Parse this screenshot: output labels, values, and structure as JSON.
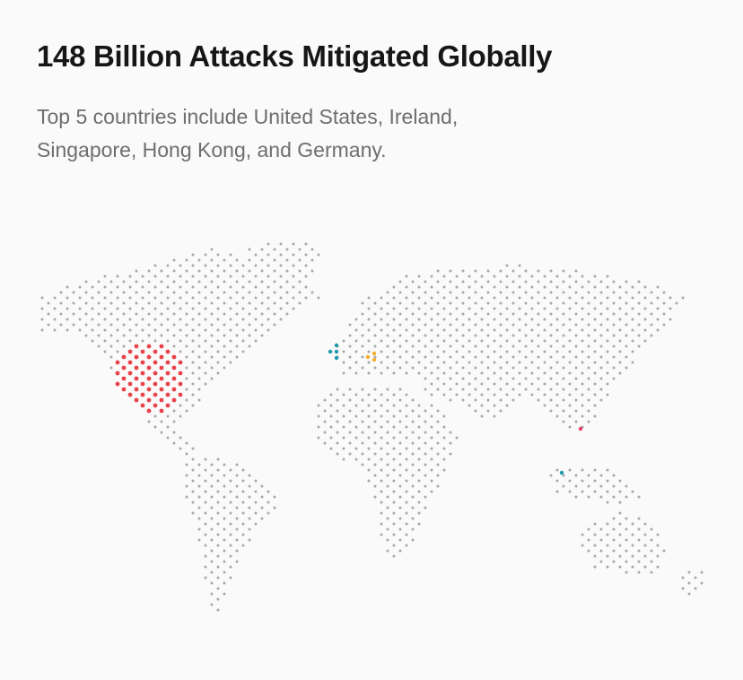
{
  "title": "148 Billion Attacks Mitigated Globally",
  "subtitle_line1": "Top 5 countries include United States, Ireland,",
  "subtitle_line2": "Singapore, Hong Kong, and Germany.",
  "map": {
    "dot_color": "#a9a9a9",
    "highlights": [
      {
        "country": "United States",
        "color": "#e8424b"
      },
      {
        "country": "Ireland",
        "color": "#1b98ad"
      },
      {
        "country": "Germany",
        "color": "#f6ad2c"
      },
      {
        "country": "Hong Kong",
        "color": "#ea3e6a"
      },
      {
        "country": "Singapore",
        "color": "#1b98ad"
      }
    ]
  }
}
